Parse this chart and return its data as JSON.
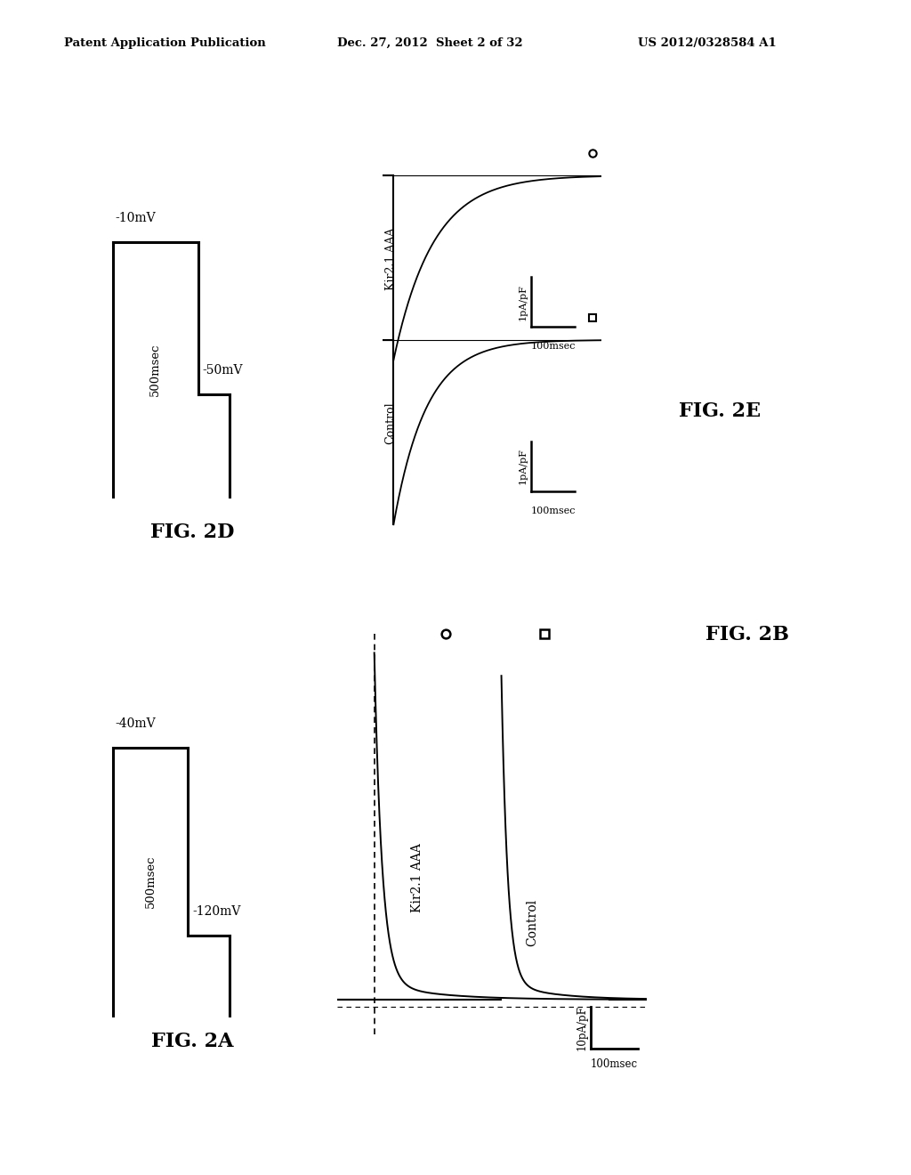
{
  "background_color": "#ffffff",
  "header_text": "Patent Application Publication",
  "header_date": "Dec. 27, 2012  Sheet 2 of 32",
  "header_patent": "US 2012/0328584 A1",
  "fig2A_label": "FIG. 2A",
  "fig2B_label": "FIG. 2B",
  "fig2D_label": "FIG. 2D",
  "fig2E_label": "FIG. 2E",
  "fig2A_voltage_top": "-40mV",
  "fig2A_voltage_bot": "-120mV",
  "fig2A_time": "500msec",
  "fig2D_voltage_top": "-10mV",
  "fig2D_voltage_bot": "-50mV",
  "fig2D_time": "500msec",
  "fig2B_ylabel": "10pA/pF",
  "fig2B_xlabel": "100msec",
  "fig2B_label1": "Kir2.1 AAA",
  "fig2B_label2": "Control",
  "fig2E_ylabel": "1pA/pF",
  "fig2E_xlabel": "100msec",
  "fig2E_label1": "Kir2.1 AAA",
  "fig2E_label2": "Control"
}
